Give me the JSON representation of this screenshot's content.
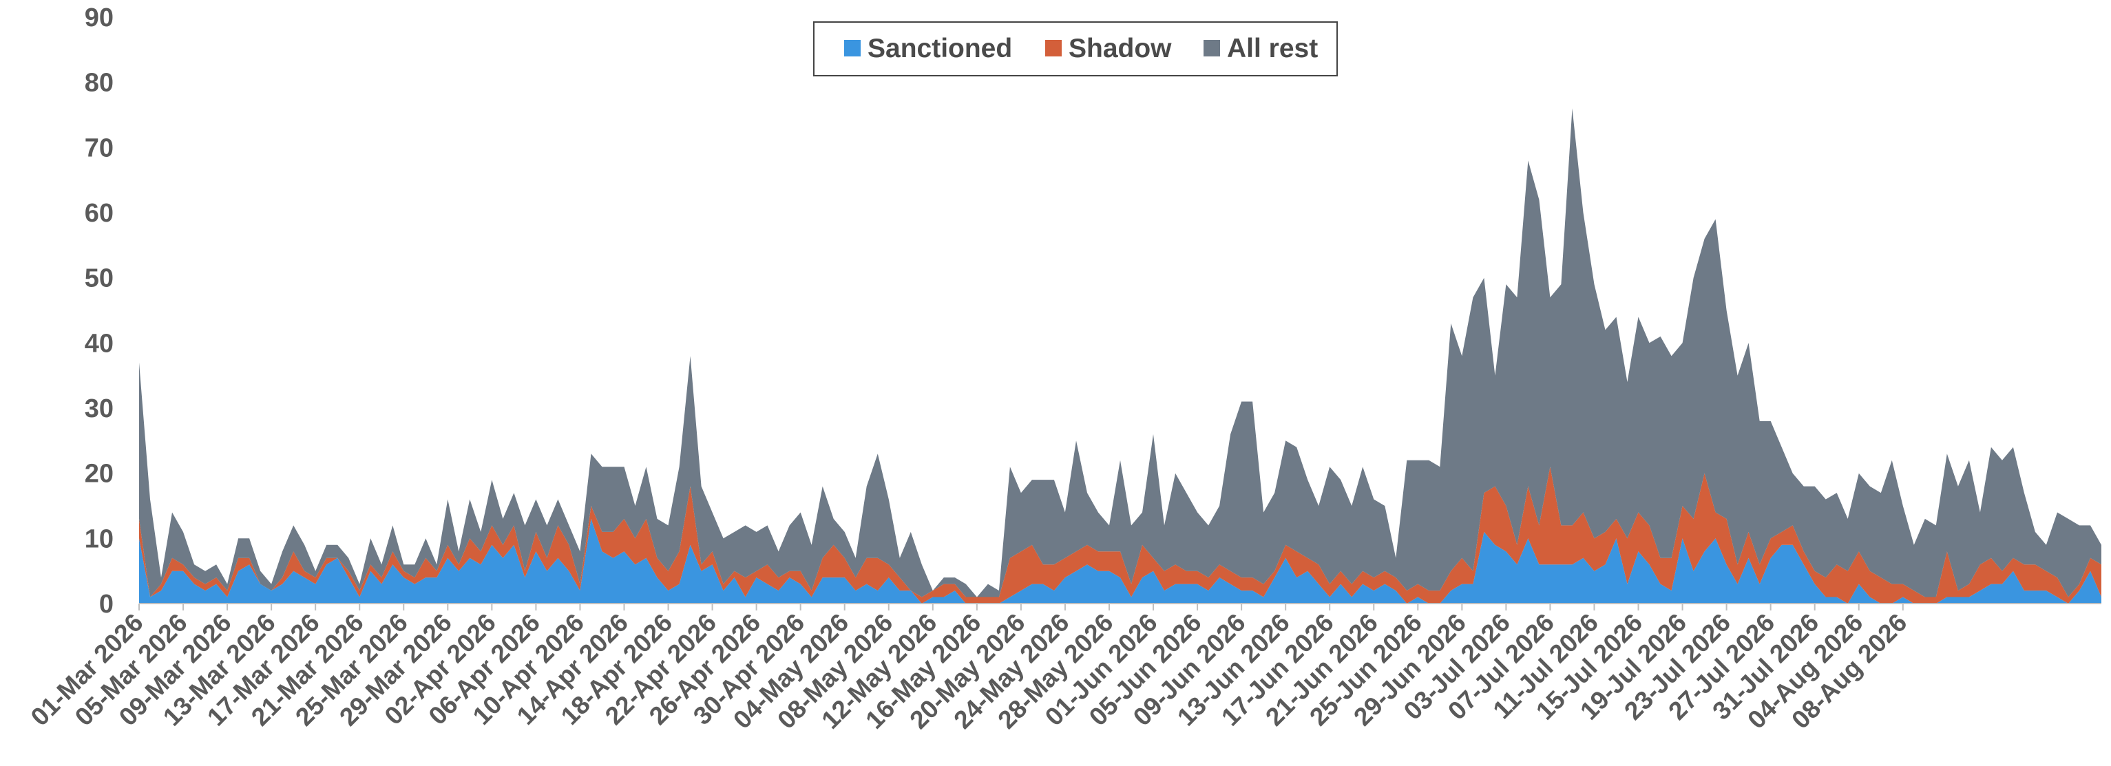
{
  "chart_data": {
    "type": "area",
    "stacked": true,
    "title": "",
    "xlabel": "",
    "ylabel": "",
    "ylim": [
      0,
      90
    ],
    "yticks": [
      0,
      10,
      20,
      30,
      40,
      50,
      60,
      70,
      80,
      90
    ],
    "grid": false,
    "legend_position": "top-center",
    "colors": {
      "Sanctioned": "#3a95e0",
      "Shadow": "#d35f3a",
      "All rest": "#6e7a87"
    },
    "x_tick_labels": [
      "01-Mar 2026",
      "05-Mar 2026",
      "09-Mar 2026",
      "13-Mar 2026",
      "17-Mar 2026",
      "21-Mar 2026",
      "25-Mar 2026",
      "29-Mar 2026",
      "02-Apr 2026",
      "06-Apr 2026",
      "10-Apr 2026",
      "14-Apr 2026",
      "18-Apr 2026",
      "22-Apr 2026",
      "26-Apr 2026",
      "30-Apr 2026",
      "04-May 2026",
      "08-May 2026",
      "12-May 2026",
      "16-May 2026",
      "20-May 2026",
      "24-May 2026",
      "28-May 2026",
      "01-Jun 2026",
      "05-Jun 2026",
      "09-Jun 2026",
      "13-Jun 2026",
      "17-Jun 2026",
      "21-Jun 2026",
      "25-Jun 2026",
      "29-Jun 2026",
      "03-Jul 2026",
      "07-Jul 2026",
      "11-Jul 2026",
      "15-Jul 2026",
      "19-Jul 2026",
      "23-Jul 2026",
      "27-Jul 2026",
      "31-Jul 2026",
      "04-Aug 2026",
      "08-Aug 2026"
    ],
    "start_date": "2026-03-01",
    "series": [
      {
        "name": "Sanctioned",
        "values": [
          10,
          1,
          2,
          5,
          5,
          3,
          2,
          3,
          1,
          5,
          6,
          3,
          2,
          3,
          5,
          4,
          3,
          6,
          7,
          4,
          1,
          5,
          3,
          6,
          4,
          3,
          4,
          4,
          7,
          5,
          7,
          6,
          9,
          7,
          9,
          4,
          8,
          5,
          7,
          5,
          2,
          13,
          8,
          7,
          8,
          6,
          7,
          4,
          2,
          3,
          9,
          5,
          6,
          2,
          4,
          1,
          4,
          3,
          2,
          4,
          3,
          1,
          4,
          4,
          4,
          2,
          3,
          2,
          4,
          2,
          2,
          0,
          1,
          1,
          2,
          0,
          0,
          0,
          0,
          1,
          2,
          3,
          3,
          2,
          4,
          5,
          6,
          5,
          5,
          4,
          1,
          4,
          5,
          2,
          3,
          3,
          3,
          2,
          4,
          3,
          2,
          2,
          1,
          4,
          7,
          4,
          5,
          3,
          1,
          3,
          1,
          3,
          2,
          3,
          2,
          0,
          1,
          0,
          0,
          2,
          3,
          3,
          11,
          9,
          8,
          6,
          10,
          6,
          6,
          6,
          6,
          7,
          5,
          6,
          10,
          3,
          8,
          6,
          3,
          2,
          10,
          5,
          8,
          10,
          6,
          3,
          7,
          3,
          7,
          9,
          9,
          6,
          3,
          1,
          1,
          0,
          3,
          1,
          0,
          0,
          1,
          0,
          0,
          0,
          1,
          1,
          1,
          2,
          3,
          3,
          5,
          2,
          2,
          2,
          1,
          0,
          2,
          5,
          1
        ]
      },
      {
        "name": "Shadow",
        "values": [
          3,
          0,
          1,
          2,
          1,
          1,
          1,
          1,
          1,
          2,
          1,
          0,
          0,
          1,
          3,
          1,
          1,
          1,
          0,
          1,
          1,
          1,
          1,
          2,
          1,
          1,
          3,
          1,
          2,
          1,
          3,
          2,
          3,
          2,
          3,
          1,
          3,
          2,
          5,
          4,
          1,
          2,
          3,
          4,
          5,
          4,
          6,
          3,
          3,
          5,
          9,
          1,
          2,
          1,
          1,
          3,
          1,
          3,
          2,
          1,
          2,
          1,
          3,
          5,
          3,
          2,
          4,
          5,
          2,
          2,
          0,
          1,
          1,
          2,
          1,
          1,
          1,
          1,
          1,
          6,
          6,
          6,
          3,
          4,
          3,
          3,
          3,
          3,
          3,
          4,
          2,
          5,
          2,
          3,
          3,
          2,
          2,
          2,
          2,
          2,
          2,
          2,
          2,
          1,
          2,
          4,
          2,
          3,
          2,
          2,
          2,
          2,
          2,
          2,
          2,
          2,
          2,
          2,
          2,
          3,
          4,
          2,
          6,
          9,
          7,
          3,
          8,
          6,
          15,
          6,
          6,
          7,
          5,
          5,
          3,
          7,
          6,
          6,
          4,
          5,
          5,
          8,
          12,
          4,
          7,
          3,
          4,
          3,
          3,
          2,
          3,
          2,
          2,
          3,
          5,
          5,
          5,
          4,
          4,
          3,
          2,
          2,
          1,
          1,
          7,
          1,
          2,
          4,
          4,
          2,
          2,
          4,
          4,
          3,
          3,
          1,
          1,
          2,
          5,
          1
        ]
      },
      {
        "name": "All rest",
        "values": [
          24,
          15,
          1,
          7,
          5,
          2,
          2,
          2,
          1,
          3,
          3,
          2,
          1,
          4,
          4,
          4,
          1,
          2,
          2,
          2,
          1,
          4,
          2,
          4,
          1,
          2,
          3,
          1,
          7,
          2,
          6,
          3,
          7,
          4,
          5,
          7,
          5,
          5,
          4,
          3,
          5,
          8,
          10,
          10,
          8,
          5,
          8,
          6,
          7,
          13,
          20,
          12,
          6,
          7,
          6,
          8,
          6,
          6,
          4,
          7,
          9,
          7,
          11,
          4,
          4,
          3,
          11,
          16,
          10,
          3,
          9,
          5,
          0,
          1,
          1,
          2,
          0,
          2,
          1,
          14,
          9,
          10,
          13,
          13,
          7,
          17,
          8,
          6,
          4,
          14,
          9,
          5,
          19,
          7,
          14,
          12,
          9,
          8,
          9,
          21,
          27,
          27,
          11,
          12,
          16,
          16,
          12,
          9,
          18,
          14,
          12,
          16,
          12,
          10,
          3,
          20,
          19,
          20,
          19,
          38,
          31,
          42,
          33,
          17,
          34,
          38,
          50,
          50,
          26,
          37,
          64,
          46,
          39,
          31,
          31,
          24,
          30,
          28,
          34,
          31,
          25,
          37,
          36,
          45,
          32,
          29,
          29,
          22,
          18,
          13,
          8,
          10,
          13,
          12,
          11,
          8,
          12,
          13,
          13,
          19,
          12,
          7,
          12,
          11,
          15,
          16,
          19,
          8,
          17,
          17,
          17,
          11,
          5,
          4,
          10,
          12,
          9,
          5,
          3
        ]
      }
    ]
  },
  "legend": {
    "items": [
      {
        "label": "Sanctioned",
        "color": "#3a95e0"
      },
      {
        "label": "Shadow",
        "color": "#d35f3a"
      },
      {
        "label": "All rest",
        "color": "#6e7a87"
      }
    ]
  }
}
